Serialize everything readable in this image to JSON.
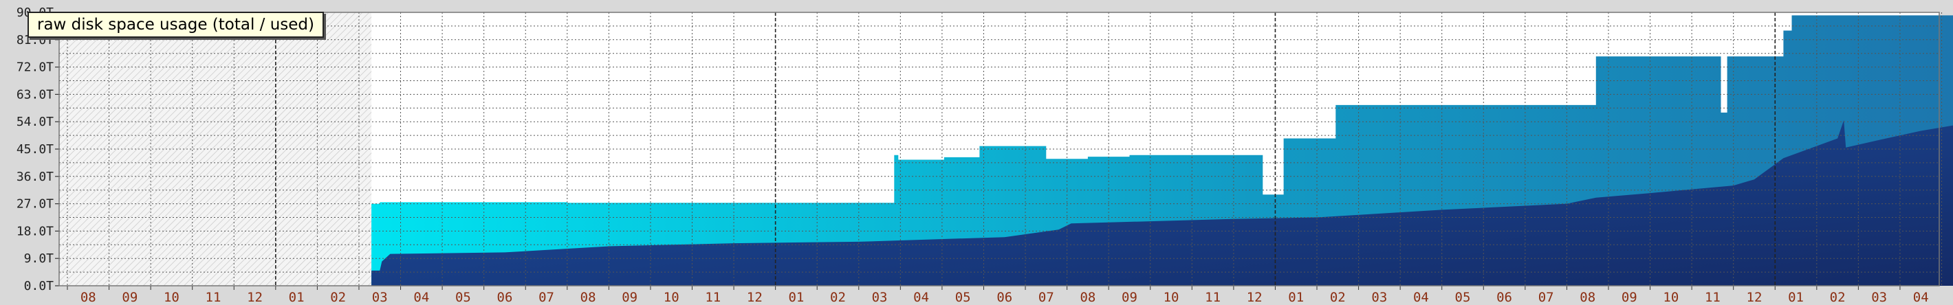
{
  "chart_data": {
    "type": "area",
    "title": "raw disk space usage (total / used)",
    "xlabel": "",
    "ylabel": "",
    "ylim": [
      0,
      90
    ],
    "yticks": [
      "0.0T",
      "9.0T",
      "18.0T",
      "27.0T",
      "36.0T",
      "45.0T",
      "54.0T",
      "63.0T",
      "72.0T",
      "81.0T",
      "90.0T"
    ],
    "xticks": [
      "08",
      "09",
      "10",
      "11",
      "12",
      "01",
      "02",
      "03",
      "04",
      "05",
      "06",
      "07",
      "08",
      "09",
      "10",
      "11",
      "12",
      "01",
      "02",
      "03",
      "04",
      "05",
      "06",
      "07",
      "08",
      "09",
      "10",
      "11",
      "12",
      "01",
      "02",
      "03",
      "04",
      "05",
      "06",
      "07",
      "08",
      "09",
      "10",
      "11",
      "12",
      "01",
      "02",
      "03",
      "04"
    ],
    "grid": true,
    "no_data_until_month_index": 7.3,
    "series": [
      {
        "role": "total",
        "values": [
          [
            7.3,
            27
          ],
          [
            7.5,
            27
          ],
          [
            7.5,
            27.5
          ],
          [
            12.0,
            27.5
          ],
          [
            12.0,
            27.3
          ],
          [
            19.85,
            27.3
          ],
          [
            19.85,
            43
          ],
          [
            19.95,
            43
          ],
          [
            19.95,
            41.5
          ],
          [
            21.05,
            41.5
          ],
          [
            21.05,
            42.3
          ],
          [
            21.9,
            42.3
          ],
          [
            21.9,
            46
          ],
          [
            23.5,
            46
          ],
          [
            23.5,
            41.8
          ],
          [
            24.5,
            41.8
          ],
          [
            24.5,
            42.5
          ],
          [
            25.5,
            42.5
          ],
          [
            25.5,
            43
          ],
          [
            28.7,
            43
          ],
          [
            28.7,
            30
          ],
          [
            29.2,
            30
          ],
          [
            29.2,
            48.5
          ],
          [
            30.45,
            48.5
          ],
          [
            30.45,
            59.5
          ],
          [
            36.7,
            59.5
          ],
          [
            36.7,
            75.5
          ],
          [
            39.7,
            75.5
          ],
          [
            39.7,
            57
          ],
          [
            39.85,
            57
          ],
          [
            39.85,
            75.5
          ],
          [
            41.2,
            75.5
          ],
          [
            41.2,
            84
          ],
          [
            41.4,
            84
          ],
          [
            41.4,
            89
          ],
          [
            45.8,
            89
          ]
        ],
        "colors": [
          "#00e3f0",
          "#129ac4",
          "#1d75ad"
        ]
      },
      {
        "role": "used",
        "values": [
          [
            7.3,
            5
          ],
          [
            7.5,
            5
          ],
          [
            7.55,
            8
          ],
          [
            7.75,
            10.5
          ],
          [
            10.5,
            11
          ],
          [
            13,
            13
          ],
          [
            16,
            14
          ],
          [
            19,
            14.5
          ],
          [
            22.5,
            16
          ],
          [
            23.8,
            18.5
          ],
          [
            24.1,
            20.5
          ],
          [
            28,
            22
          ],
          [
            30,
            22.5
          ],
          [
            33,
            25
          ],
          [
            36,
            27
          ],
          [
            36.7,
            29
          ],
          [
            38,
            30.5
          ],
          [
            40,
            33
          ],
          [
            40.5,
            35
          ],
          [
            41.2,
            42
          ],
          [
            41.8,
            45
          ],
          [
            42.5,
            48.5
          ],
          [
            42.65,
            54.5
          ],
          [
            42.7,
            45.5
          ],
          [
            43.5,
            48
          ],
          [
            44.5,
            51
          ],
          [
            45.8,
            54
          ]
        ],
        "colors": [
          "#1d4fa0",
          "#142a66"
        ]
      }
    ]
  }
}
